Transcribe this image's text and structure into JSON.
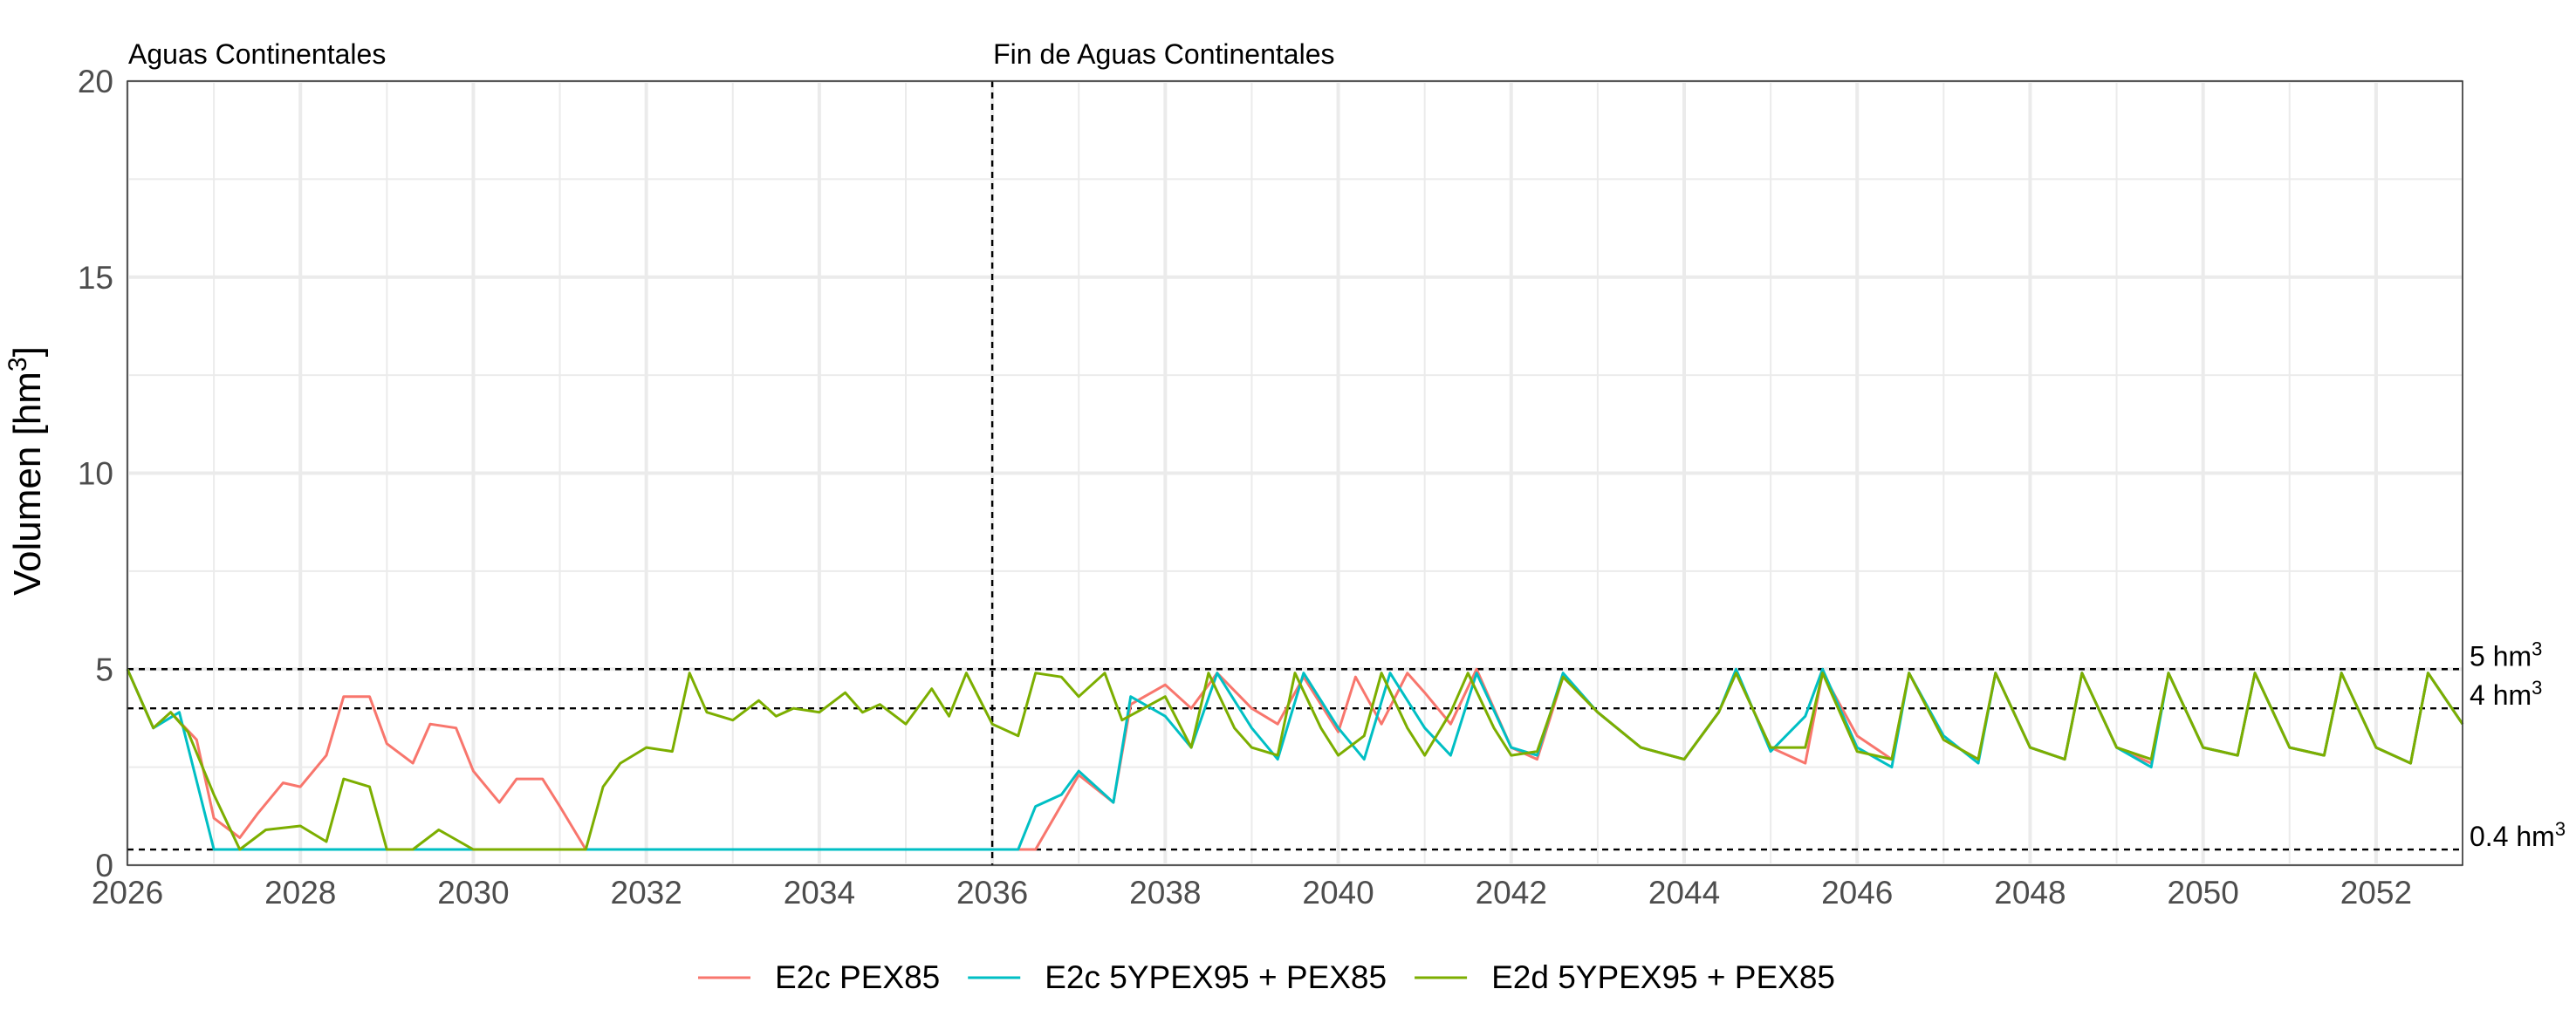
{
  "chart_data": {
    "type": "line",
    "title": "",
    "xlabel": "",
    "ylabel": "Volumen [hm",
    "ylabel_sup": "3",
    "xlim": [
      2026,
      2053
    ],
    "ylim": [
      0,
      20
    ],
    "x_ticks": [
      2026,
      2028,
      2030,
      2032,
      2034,
      2036,
      2038,
      2040,
      2042,
      2044,
      2046,
      2048,
      2050,
      2052
    ],
    "x_tick_labels": [
      "2026",
      "2028",
      "2030",
      "2032",
      "2034",
      "2036",
      "2038",
      "2040",
      "2042",
      "2044",
      "2046",
      "2048",
      "2050",
      "2052"
    ],
    "y_ticks": [
      0,
      5,
      10,
      15,
      20
    ],
    "y_tick_labels": [
      "0",
      "5",
      "10",
      "15",
      "20"
    ],
    "grid": true,
    "legend_position": "bottom",
    "reference_lines": [
      {
        "y": 5,
        "label": "5 hm",
        "sup": "3"
      },
      {
        "y": 4,
        "label": "4 hm",
        "sup": "3"
      },
      {
        "y": 0.4,
        "label": "0.4 hm",
        "sup": "3"
      }
    ],
    "vertical_line": {
      "x": 2036
    },
    "annotations": [
      {
        "x": 2026,
        "text": "Aguas Continentales"
      },
      {
        "x": 2036,
        "text": "Fin de Aguas Continentales"
      }
    ],
    "series": [
      {
        "name": "E2c PEX85",
        "color": "#F8766D",
        "x": [
          2026.0,
          2026.3,
          2026.5,
          2026.8,
          2027.0,
          2027.3,
          2027.5,
          2027.8,
          2028.0,
          2028.3,
          2028.5,
          2028.8,
          2029.0,
          2029.3,
          2029.5,
          2029.8,
          2030.0,
          2030.3,
          2030.5,
          2030.8,
          2031.0,
          2031.3,
          2031.6,
          2032.0,
          2032.5,
          2033.0,
          2034.0,
          2035.0,
          2036.0,
          2036.5,
          2037.0,
          2037.4,
          2037.6,
          2038.0,
          2038.3,
          2038.6,
          2039.0,
          2039.3,
          2039.6,
          2040.0,
          2040.2,
          2040.5,
          2040.8,
          2041.0,
          2041.3,
          2041.6,
          2042.0,
          2042.3,
          2042.6,
          2043.0,
          2043.5,
          2044.0,
          2044.4,
          2044.6,
          2045.0,
          2045.4,
          2045.6,
          2046.0,
          2046.4,
          2046.6,
          2047.0,
          2047.4,
          2047.6,
          2048.0,
          2048.4,
          2048.6,
          2049.0,
          2049.4,
          2049.6,
          2050.0,
          2050.4,
          2050.6,
          2051.0,
          2051.4,
          2051.6,
          2052.0,
          2052.4,
          2052.6,
          2053.0
        ],
        "y": [
          5.0,
          3.5,
          3.9,
          3.2,
          1.2,
          0.7,
          1.3,
          2.1,
          2.0,
          2.8,
          4.3,
          4.3,
          3.1,
          2.6,
          3.6,
          3.5,
          2.4,
          1.6,
          2.2,
          2.2,
          1.5,
          0.4,
          0.4,
          0.4,
          0.4,
          0.4,
          0.4,
          0.4,
          0.4,
          0.4,
          2.3,
          1.6,
          4.1,
          4.6,
          4.0,
          4.9,
          4.0,
          3.6,
          4.8,
          3.4,
          4.8,
          3.6,
          4.9,
          4.4,
          3.6,
          5.0,
          3.0,
          2.7,
          4.8,
          3.9,
          3.0,
          2.7,
          3.9,
          4.9,
          3.0,
          2.6,
          4.9,
          3.3,
          2.7,
          4.9,
          3.2,
          2.7,
          4.9,
          3.0,
          2.7,
          4.9,
          3.0,
          2.6,
          4.9,
          3.0,
          2.8,
          4.9,
          3.0,
          2.8,
          4.9,
          3.0,
          2.6,
          4.9,
          3.6
        ]
      },
      {
        "name": "E2c 5YPEX95 + PEX85",
        "color": "#00BFC4",
        "x": [
          2026.0,
          2026.3,
          2026.6,
          2027.0,
          2027.5,
          2028.0,
          2028.5,
          2029.0,
          2029.5,
          2030.0,
          2030.5,
          2031.0,
          2031.5,
          2032.0,
          2032.6,
          2033.0,
          2033.5,
          2034.0,
          2034.5,
          2035.0,
          2035.5,
          2036.0,
          2036.3,
          2036.5,
          2036.8,
          2037.0,
          2037.4,
          2037.6,
          2038.0,
          2038.3,
          2038.6,
          2039.0,
          2039.3,
          2039.6,
          2040.0,
          2040.3,
          2040.6,
          2041.0,
          2041.3,
          2041.6,
          2042.0,
          2042.3,
          2042.6,
          2043.0,
          2043.5,
          2044.0,
          2044.4,
          2044.6,
          2045.0,
          2045.4,
          2045.6,
          2046.0,
          2046.4,
          2046.6,
          2047.0,
          2047.4,
          2047.6,
          2048.0,
          2048.4,
          2048.6,
          2049.0,
          2049.4,
          2049.6,
          2050.0,
          2050.4,
          2050.6,
          2051.0,
          2051.4,
          2051.6,
          2052.0,
          2052.4,
          2052.6,
          2053.0
        ],
        "y": [
          5.0,
          3.5,
          3.9,
          0.4,
          0.4,
          0.4,
          0.4,
          0.4,
          0.4,
          0.4,
          0.4,
          0.4,
          0.4,
          0.4,
          0.4,
          0.4,
          0.4,
          0.4,
          0.4,
          0.4,
          0.4,
          0.4,
          0.4,
          1.5,
          1.8,
          2.4,
          1.6,
          4.3,
          3.8,
          3.0,
          4.9,
          3.5,
          2.7,
          4.9,
          3.5,
          2.7,
          4.9,
          3.5,
          2.8,
          4.9,
          3.0,
          2.8,
          4.9,
          3.9,
          3.0,
          2.7,
          3.9,
          5.0,
          2.9,
          3.8,
          5.0,
          3.0,
          2.5,
          4.9,
          3.3,
          2.6,
          4.9,
          3.0,
          2.7,
          4.9,
          3.0,
          2.5,
          4.9,
          3.0,
          2.8,
          4.9,
          3.0,
          2.8,
          4.9,
          3.0,
          2.6,
          4.9,
          3.6
        ]
      },
      {
        "name": "E2d 5YPEX95 + PEX85",
        "color": "#7CAE00",
        "x": [
          2026.0,
          2026.3,
          2026.5,
          2026.7,
          2027.0,
          2027.3,
          2027.6,
          2028.0,
          2028.3,
          2028.5,
          2028.8,
          2029.0,
          2029.3,
          2029.6,
          2030.0,
          2030.5,
          2031.0,
          2031.3,
          2031.5,
          2031.7,
          2032.0,
          2032.3,
          2032.5,
          2032.7,
          2033.0,
          2033.3,
          2033.5,
          2033.7,
          2034.0,
          2034.3,
          2034.5,
          2034.7,
          2035.0,
          2035.3,
          2035.5,
          2035.7,
          2036.0,
          2036.3,
          2036.5,
          2036.8,
          2037.0,
          2037.3,
          2037.5,
          2038.0,
          2038.3,
          2038.5,
          2038.8,
          2039.0,
          2039.3,
          2039.5,
          2039.8,
          2040.0,
          2040.3,
          2040.5,
          2040.8,
          2041.0,
          2041.3,
          2041.5,
          2041.8,
          2042.0,
          2042.3,
          2042.6,
          2043.0,
          2043.5,
          2044.0,
          2044.4,
          2044.6,
          2045.0,
          2045.4,
          2045.6,
          2046.0,
          2046.4,
          2046.6,
          2047.0,
          2047.4,
          2047.6,
          2048.0,
          2048.4,
          2048.6,
          2049.0,
          2049.4,
          2049.6,
          2050.0,
          2050.4,
          2050.6,
          2051.0,
          2051.4,
          2051.6,
          2052.0,
          2052.4,
          2052.6,
          2053.0
        ],
        "y": [
          5.0,
          3.5,
          3.9,
          3.4,
          1.8,
          0.4,
          0.9,
          1.0,
          0.6,
          2.2,
          2.0,
          0.4,
          0.4,
          0.9,
          0.4,
          0.4,
          0.4,
          0.4,
          2.0,
          2.6,
          3.0,
          2.9,
          4.9,
          3.9,
          3.7,
          4.2,
          3.8,
          4.0,
          3.9,
          4.4,
          3.9,
          4.1,
          3.6,
          4.5,
          3.8,
          4.9,
          3.6,
          3.3,
          4.9,
          4.8,
          4.3,
          4.9,
          3.7,
          4.3,
          3.0,
          4.9,
          3.5,
          3.0,
          2.8,
          4.9,
          3.5,
          2.8,
          3.3,
          4.9,
          3.5,
          2.8,
          3.9,
          4.9,
          3.5,
          2.8,
          2.9,
          4.8,
          3.9,
          3.0,
          2.7,
          3.9,
          4.9,
          3.0,
          3.0,
          4.9,
          2.9,
          2.7,
          4.9,
          3.2,
          2.7,
          4.9,
          3.0,
          2.7,
          4.9,
          3.0,
          2.7,
          4.9,
          3.0,
          2.8,
          4.9,
          3.0,
          2.8,
          4.9,
          3.0,
          2.6,
          4.9,
          3.6
        ]
      }
    ]
  }
}
